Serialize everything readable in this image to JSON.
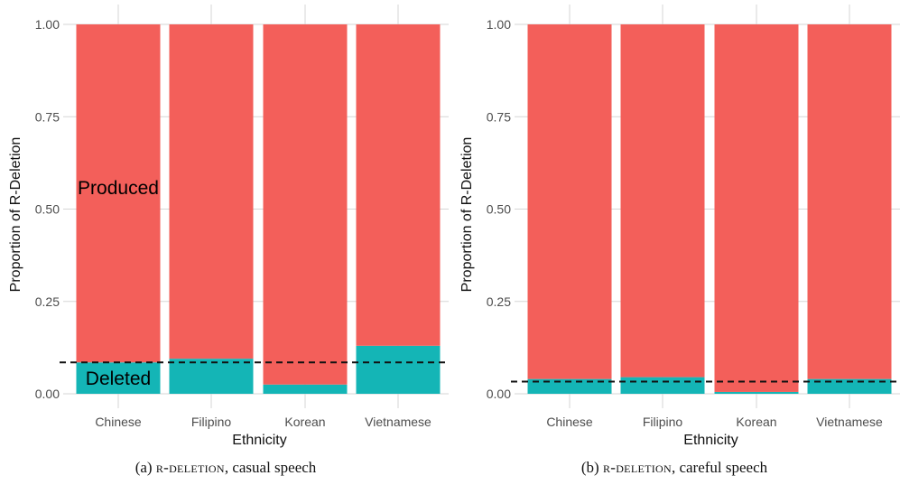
{
  "chart_data": [
    {
      "type": "bar",
      "stacked": true,
      "categories": [
        "Chinese",
        "Filipino",
        "Korean",
        "Vietnamese"
      ],
      "series": [
        {
          "name": "Deleted",
          "values": [
            0.085,
            0.095,
            0.025,
            0.13
          ],
          "color": "#14b5b6"
        },
        {
          "name": "Produced",
          "values": [
            0.915,
            0.905,
            0.975,
            0.87
          ],
          "color": "#f35f5a"
        }
      ],
      "reference_line": 0.085,
      "xlabel": "Ethnicity",
      "ylabel": "Proportion of R-Deletion",
      "ylim": [
        0,
        1
      ],
      "yticks": [
        "0.00",
        "0.25",
        "0.50",
        "0.75",
        "1.00"
      ],
      "legend": "inline labels",
      "grid": true,
      "caption": {
        "prefix": "(a) ",
        "smallcaps": "r-deletion",
        "suffix": ", casual speech"
      }
    },
    {
      "type": "bar",
      "stacked": true,
      "categories": [
        "Chinese",
        "Filipino",
        "Korean",
        "Vietnamese"
      ],
      "series": [
        {
          "name": "Deleted",
          "values": [
            0.04,
            0.045,
            0.005,
            0.04
          ],
          "color": "#14b5b6"
        },
        {
          "name": "Produced",
          "values": [
            0.96,
            0.955,
            0.995,
            0.96
          ],
          "color": "#f35f5a"
        }
      ],
      "reference_line": 0.033,
      "xlabel": "Ethnicity",
      "ylabel": "Proportion of R-Deletion",
      "ylim": [
        0,
        1
      ],
      "yticks": [
        "0.00",
        "0.25",
        "0.50",
        "0.75",
        "1.00"
      ],
      "grid": true,
      "caption": {
        "prefix": "(b) ",
        "smallcaps": "r-deletion",
        "suffix": ", careful speech"
      }
    }
  ],
  "labels": {
    "produced": "Produced",
    "deleted": "Deleted"
  }
}
